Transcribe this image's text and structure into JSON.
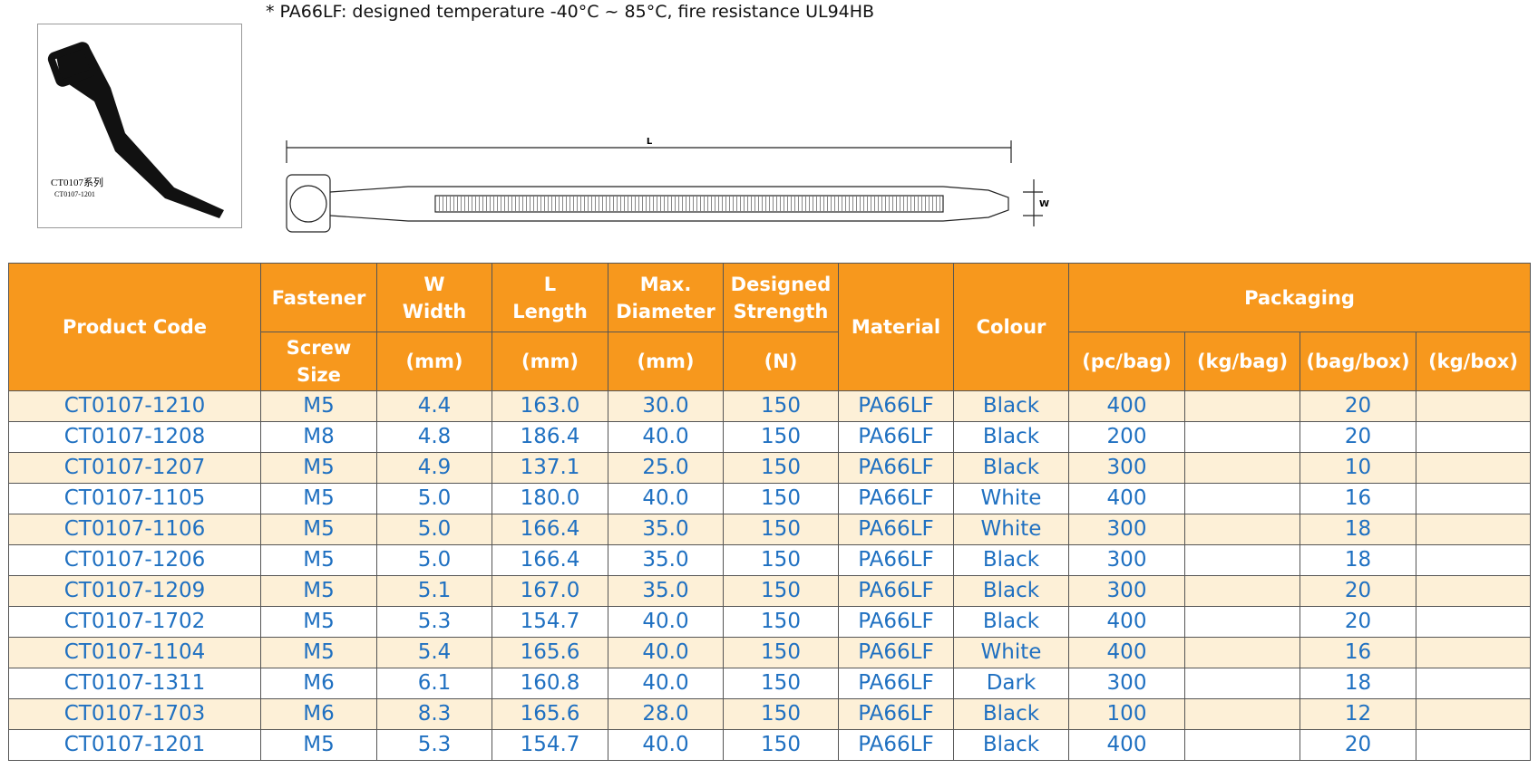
{
  "note": "* PA66LF: designed temperature -40°C ~ 85°C, fire resistance UL94HB",
  "photo": {
    "caption": "CT0107系列",
    "subcaption": "CT0107-1201"
  },
  "drawing": {
    "length_label": "L",
    "width_label": "W"
  },
  "table": {
    "headers": {
      "product_code": "Product Code",
      "fastener": "Fastener",
      "screw_size": [
        "Screw",
        "Size"
      ],
      "width": [
        "W",
        "Width"
      ],
      "width_unit": "(mm)",
      "length": [
        "L",
        "Length"
      ],
      "length_unit": "(mm)",
      "diameter": [
        "Max.",
        "Diameter"
      ],
      "diameter_unit": "(mm)",
      "strength": [
        "Designed",
        "Strength"
      ],
      "strength_unit": "(N)",
      "material": "Material",
      "colour": "Colour",
      "packaging": "Packaging",
      "packaging_units": [
        "(pc/bag)",
        "(kg/bag)",
        "(bag/box)",
        "(kg/box)"
      ]
    },
    "rows": [
      [
        "CT0107-1210",
        "M5",
        "4.4",
        "163.0",
        "30.0",
        "150",
        "PA66LF",
        "Black",
        "400",
        "20"
      ],
      [
        "CT0107-1208",
        "M8",
        "4.8",
        "186.4",
        "40.0",
        "150",
        "PA66LF",
        "Black",
        "200",
        "20"
      ],
      [
        "CT0107-1207",
        "M5",
        "4.9",
        "137.1",
        "25.0",
        "150",
        "PA66LF",
        "Black",
        "300",
        "10"
      ],
      [
        "CT0107-1105",
        "M5",
        "5.0",
        "180.0",
        "40.0",
        "150",
        "PA66LF",
        "White",
        "400",
        "16"
      ],
      [
        "CT0107-1106",
        "M5",
        "5.0",
        "166.4",
        "35.0",
        "150",
        "PA66LF",
        "White",
        "300",
        "18"
      ],
      [
        "CT0107-1206",
        "M5",
        "5.0",
        "166.4",
        "35.0",
        "150",
        "PA66LF",
        "Black",
        "300",
        "18"
      ],
      [
        "CT0107-1209",
        "M5",
        "5.1",
        "167.0",
        "35.0",
        "150",
        "PA66LF",
        "Black",
        "300",
        "20"
      ],
      [
        "CT0107-1702",
        "M5",
        "5.3",
        "154.7",
        "40.0",
        "150",
        "PA66LF",
        "Black",
        "400",
        "20"
      ],
      [
        "CT0107-1104",
        "M5",
        "5.4",
        "165.6",
        "40.0",
        "150",
        "PA66LF",
        "White",
        "400",
        "16"
      ],
      [
        "CT0107-1311",
        "M6",
        "6.1",
        "160.8",
        "40.0",
        "150",
        "PA66LF",
        "Dark",
        "300",
        "18"
      ],
      [
        "CT0107-1703",
        "M6",
        "8.3",
        "165.6",
        "28.0",
        "150",
        "PA66LF",
        "Black",
        "100",
        "12"
      ],
      [
        "CT0107-1201",
        "M5",
        "5.3",
        "154.7",
        "40.0",
        "150",
        "PA66LF",
        "Black",
        "400",
        "20"
      ]
    ]
  }
}
